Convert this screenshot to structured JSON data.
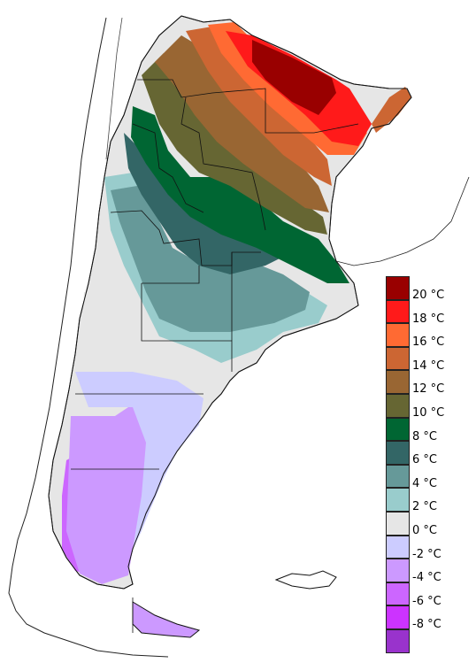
{
  "colors": {
    "background": "#ffffff",
    "border": "#000000",
    "coastline": "#222222"
  },
  "legend": {
    "items": [
      {
        "label": "20 °C",
        "color": "#990000"
      },
      {
        "label": "18 °C",
        "color": "#ff1a1a"
      },
      {
        "label": "16 °C",
        "color": "#ff6a33"
      },
      {
        "label": "14 °C",
        "color": "#cc6633"
      },
      {
        "label": "12 °C",
        "color": "#996633"
      },
      {
        "label": "10 °C",
        "color": "#666633"
      },
      {
        "label": "8 °C",
        "color": "#006633"
      },
      {
        "label": "6 °C",
        "color": "#336666"
      },
      {
        "label": "4 °C",
        "color": "#669999"
      },
      {
        "label": "2 °C",
        "color": "#99cccc"
      },
      {
        "label": "0 °C",
        "color": "#e6e6e6"
      },
      {
        "label": "-2 °C",
        "color": "#ccccff"
      },
      {
        "label": "-4 °C",
        "color": "#cc99ff"
      },
      {
        "label": "-6 °C",
        "color": "#cc66ff"
      },
      {
        "label": "-8 °C",
        "color": "#cc33ff"
      },
      {
        "label": "",
        "color": "#9933cc"
      }
    ]
  }
}
